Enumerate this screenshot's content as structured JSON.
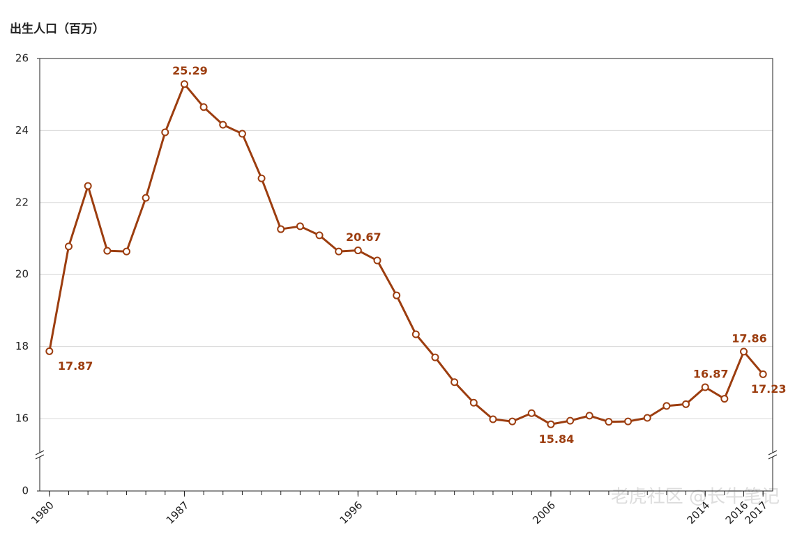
{
  "chart_data": {
    "type": "line",
    "title": "出生人口（百万）",
    "x": [
      1980,
      1981,
      1982,
      1983,
      1984,
      1985,
      1986,
      1987,
      1988,
      1989,
      1990,
      1991,
      1992,
      1993,
      1994,
      1995,
      1996,
      1997,
      1998,
      1999,
      2000,
      2001,
      2002,
      2003,
      2004,
      2005,
      2006,
      2007,
      2008,
      2009,
      2010,
      2011,
      2012,
      2013,
      2014,
      2015,
      2016,
      2017
    ],
    "series": [
      {
        "name": "出生人口",
        "color": "#9c3d0f",
        "values": [
          17.87,
          20.78,
          22.46,
          20.66,
          20.64,
          22.13,
          23.95,
          25.29,
          24.65,
          24.16,
          23.91,
          22.67,
          21.26,
          21.34,
          21.09,
          20.64,
          20.67,
          20.39,
          19.42,
          18.34,
          17.7,
          17.01,
          16.44,
          15.98,
          15.92,
          16.15,
          15.84,
          15.94,
          16.08,
          15.91,
          15.92,
          16.02,
          16.35,
          16.4,
          16.87,
          16.55,
          17.86,
          17.23
        ]
      }
    ],
    "xlim": [
      1979.5,
      2017.5
    ],
    "xticks": [
      1980,
      1987,
      1996,
      2006,
      2014,
      2016,
      2017
    ],
    "ylim": [
      0,
      26
    ],
    "yticks": [
      0,
      16,
      18,
      20,
      22,
      24,
      26
    ],
    "axis_break": true,
    "grid": true,
    "watermark": "老虎社区 @长牛笔记"
  }
}
